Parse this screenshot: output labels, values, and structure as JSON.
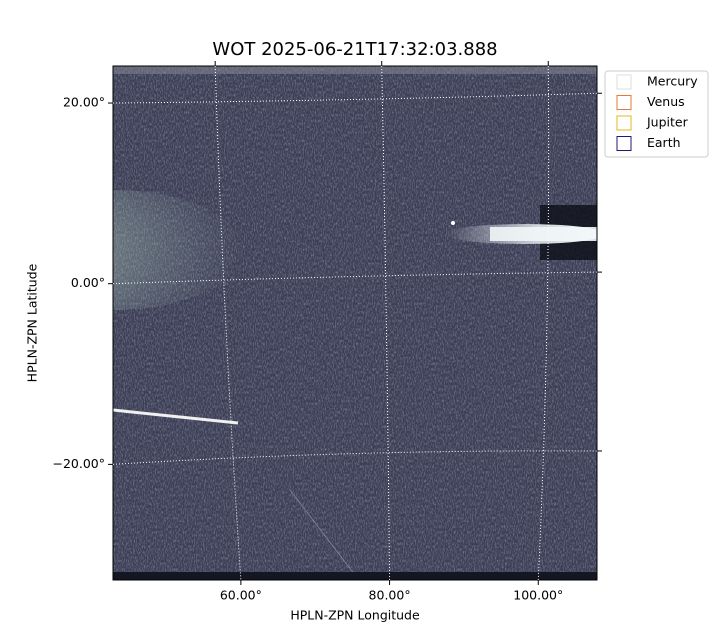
{
  "chart_data": {
    "type": "image",
    "title": "WOT 2025-06-21T17:32:03.888",
    "xlabel": "HPLN-ZPN Longitude",
    "ylabel": "HPLN-ZPN Latitude",
    "xlim": [
      42.8,
      107.9
    ],
    "ylim": [
      -32.8,
      24.1
    ],
    "xticks": [
      {
        "value": 60,
        "label": "60.00°"
      },
      {
        "value": 80,
        "label": "80.00°"
      },
      {
        "value": 100,
        "label": "100.00°"
      }
    ],
    "yticks": [
      {
        "value": 20,
        "label": "20.00°"
      },
      {
        "value": 0,
        "label": "0.00°"
      },
      {
        "value": -20,
        "label": "−20.00°"
      }
    ],
    "grid": true,
    "legend_position": "upper right outside",
    "legend": [
      {
        "name": "Mercury",
        "color": "#dddddd"
      },
      {
        "name": "Venus",
        "color": "#e07b39"
      },
      {
        "name": "Jupiter",
        "color": "#e6b422"
      },
      {
        "name": "Earth",
        "color": "#1a1a80"
      }
    ]
  }
}
